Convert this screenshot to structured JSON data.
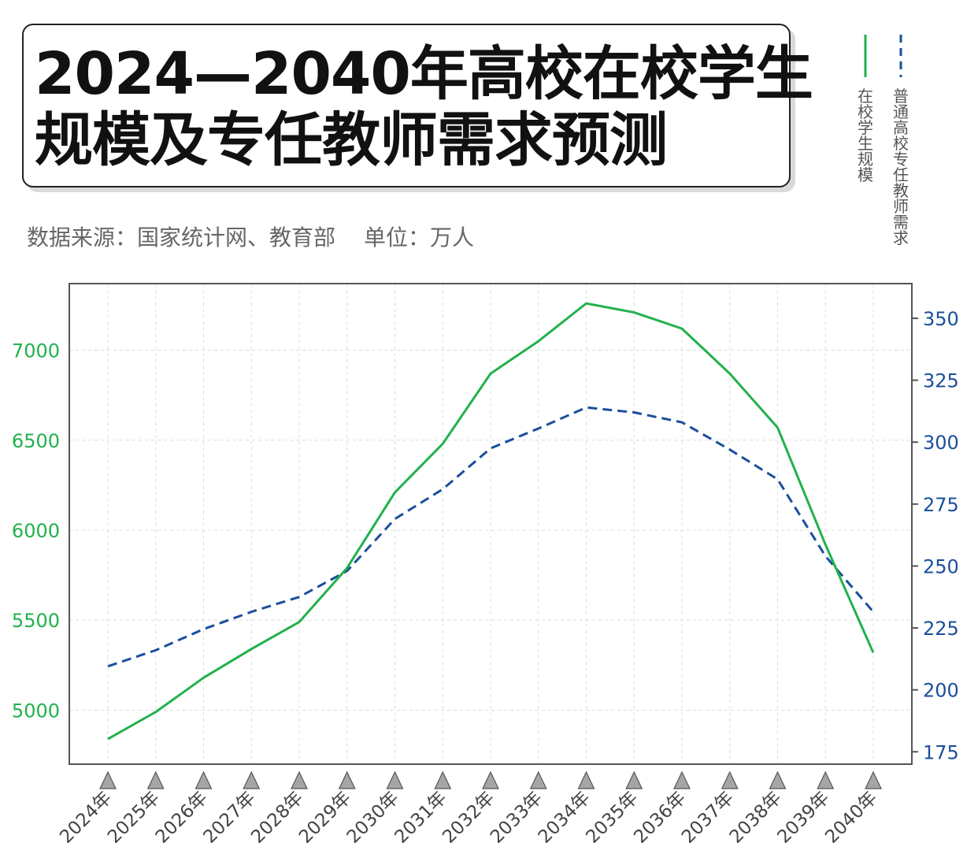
{
  "title": {
    "line1": "2024—2040年高校在校学生",
    "line2": "规模及专任教师需求预测"
  },
  "source": "数据来源：国家统计网、教育部",
  "unit": "单位：万人",
  "colors": {
    "students": "#22b14c",
    "teachers": "#1a4f9c",
    "marker": "#a9a4a4"
  },
  "chart_data": {
    "type": "line",
    "grid": true,
    "legend_position": "top-right",
    "categories": [
      "2024年",
      "2025年",
      "2026年",
      "2027年",
      "2028年",
      "2029年",
      "2030年",
      "2031年",
      "2032年",
      "2033年",
      "2034年",
      "2035年",
      "2036年",
      "2037年",
      "2038年",
      "2039年",
      "2040年"
    ],
    "series": [
      {
        "name": "在校学生规模",
        "axis": "left",
        "style": "solid",
        "values": [
          4840,
          4990,
          5180,
          5340,
          5490,
          5790,
          6210,
          6480,
          6870,
          7050,
          7260,
          7210,
          7120,
          6870,
          6570,
          5920,
          5320
        ]
      },
      {
        "name": "普通高校专任教师需求",
        "axis": "right",
        "style": "dashed",
        "values": [
          209.5,
          216,
          224.5,
          231.5,
          237.5,
          248,
          269,
          281,
          297.5,
          305.5,
          314,
          312,
          308,
          297,
          285,
          254,
          231.5
        ]
      }
    ],
    "y_left": {
      "ticks": [
        5000,
        5500,
        6000,
        6500,
        7000
      ],
      "range": [
        4700,
        7370
      ]
    },
    "y_right": {
      "ticks": [
        175,
        200,
        225,
        250,
        275,
        300,
        325,
        350
      ],
      "range": [
        170,
        364
      ]
    }
  }
}
